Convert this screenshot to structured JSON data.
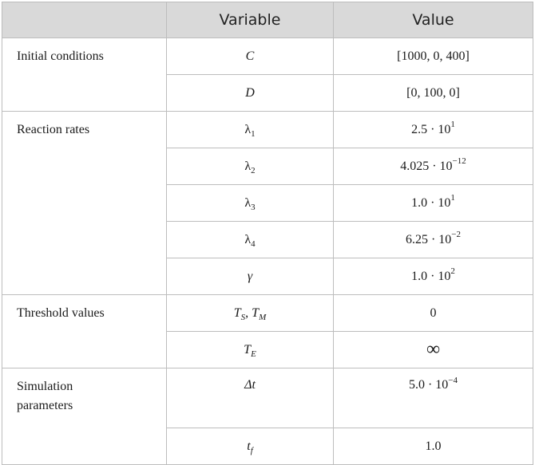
{
  "header": {
    "col1": "",
    "col2": "Variable",
    "col3": "Value"
  },
  "groups": {
    "initial": "Initial conditions",
    "rates": "Reaction rates",
    "threshold": "Threshold values",
    "simulation": "Simulation parameters"
  },
  "rows": {
    "C": {
      "var": "C",
      "value": "[1000, 0, 400]"
    },
    "D": {
      "var": "D",
      "value": "[0, 100, 0]"
    },
    "l1": {
      "sym": "λ",
      "sub": "1",
      "mant": "2.5 · 10",
      "exp": "1"
    },
    "l2": {
      "sym": "λ",
      "sub": "2",
      "mant": "4.025 · 10",
      "exp": "−12"
    },
    "l3": {
      "sym": "λ",
      "sub": "3",
      "mant": "1.0 · 10",
      "exp": "1"
    },
    "l4": {
      "sym": "λ",
      "sub": "4",
      "mant": "6.25 · 10",
      "exp": "−2"
    },
    "gamma": {
      "var": "γ",
      "mant": "1.0 · 10",
      "exp": "2"
    },
    "TSTM": {
      "t1": "T",
      "s1": "S",
      "sep": ", ",
      "t2": "T",
      "s2": "M",
      "value": "0"
    },
    "TE": {
      "t": "T",
      "s": "E",
      "value": "∞"
    },
    "dt": {
      "var": "Δt",
      "mant": "5.0 · 10",
      "exp": "−4"
    },
    "tf": {
      "t": "t",
      "s": "f",
      "value": "1.0"
    }
  }
}
